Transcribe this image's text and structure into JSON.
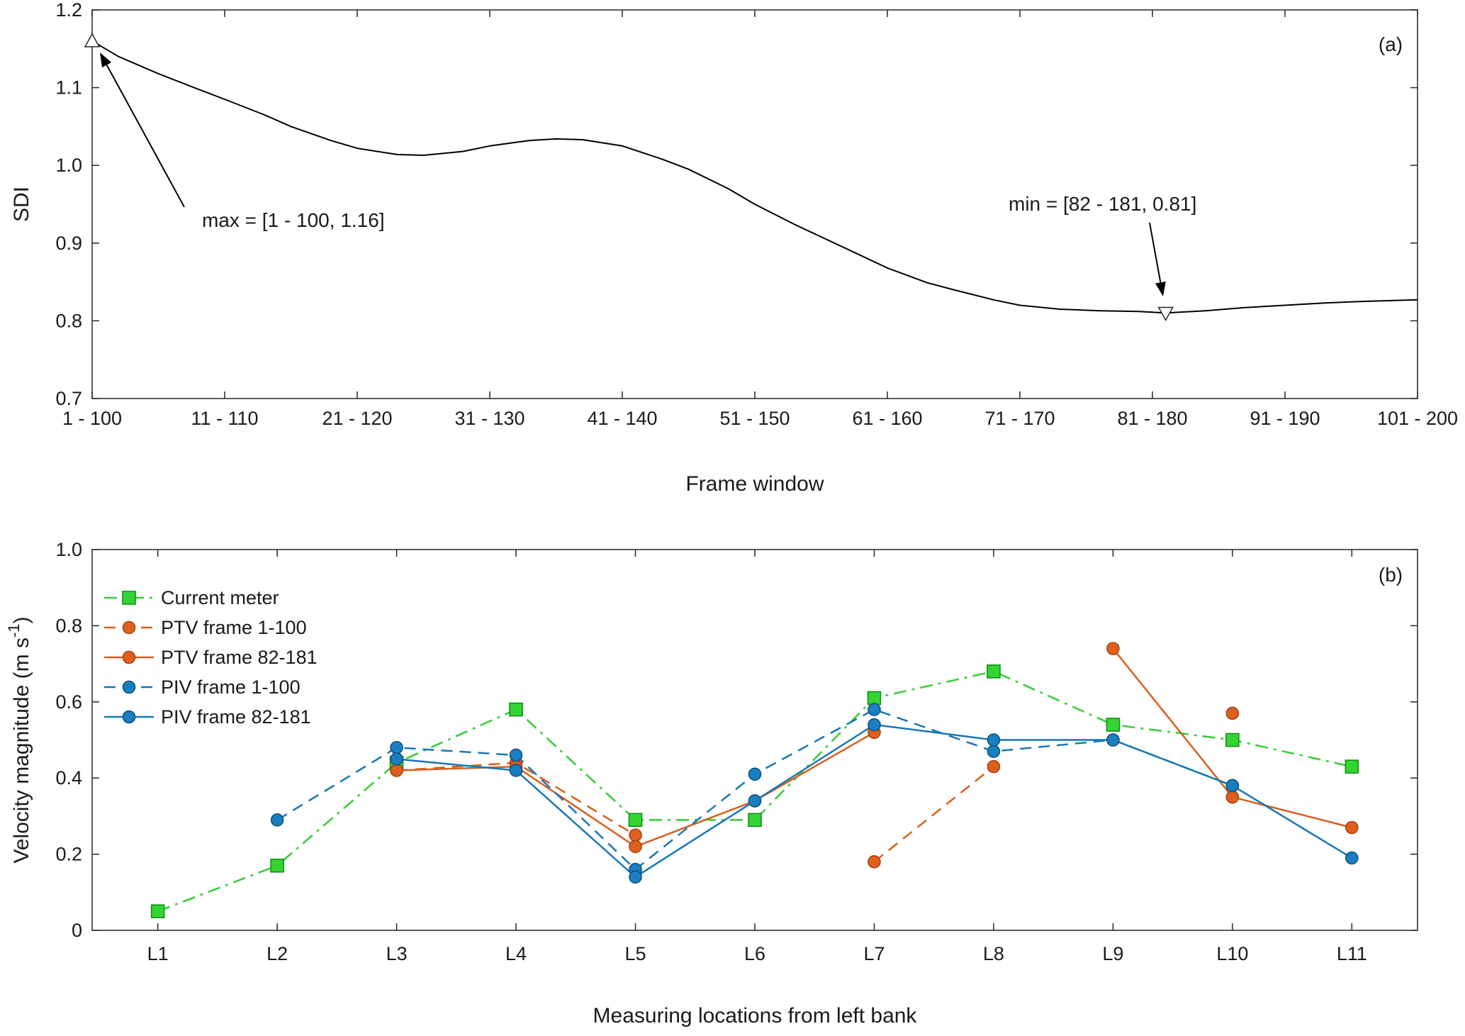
{
  "figure": {
    "background": "#ffffff",
    "axis_color": "#262626",
    "text_color": "#1a1a1a"
  },
  "chart_data": [
    {
      "id": "sdi",
      "type": "line",
      "panel_label": "(a)",
      "title": "",
      "xlabel": "Frame window",
      "ylabel": "SDI",
      "xlim": [
        1,
        101
      ],
      "ylim": [
        0.7,
        1.2
      ],
      "yticks": [
        0.7,
        0.8,
        0.9,
        1.0,
        1.1,
        1.2
      ],
      "ytick_labels": [
        "0.7",
        "0.8",
        "0.9",
        "1.0",
        "1.1",
        "1.2"
      ],
      "xticks": [
        1,
        11,
        21,
        31,
        41,
        51,
        61,
        71,
        81,
        91,
        101
      ],
      "xtick_labels": [
        "1 - 100",
        "11 - 110",
        "21 - 120",
        "31 - 130",
        "41 - 140",
        "51 - 150",
        "61 - 160",
        "71 - 170",
        "81 - 180",
        "91 - 190",
        "101 - 200"
      ],
      "grid": false,
      "legend": null,
      "series": [
        {
          "name": "SDI",
          "line_color": "#000000",
          "line_style": "solid",
          "x": [
            1,
            3,
            6,
            9,
            11,
            14,
            16,
            19,
            21,
            24,
            26,
            29,
            31,
            34,
            36,
            38,
            41,
            44,
            46,
            49,
            51,
            54,
            56,
            59,
            61,
            64,
            66,
            69,
            71,
            74,
            77,
            80,
            82,
            85,
            88,
            91,
            94,
            97,
            101
          ],
          "y": [
            1.16,
            1.14,
            1.118,
            1.098,
            1.085,
            1.065,
            1.05,
            1.032,
            1.022,
            1.014,
            1.013,
            1.018,
            1.025,
            1.032,
            1.034,
            1.033,
            1.025,
            1.008,
            0.995,
            0.97,
            0.95,
            0.924,
            0.908,
            0.884,
            0.868,
            0.849,
            0.84,
            0.827,
            0.82,
            0.815,
            0.813,
            0.812,
            0.81,
            0.813,
            0.817,
            0.82,
            0.823,
            0.825,
            0.827
          ]
        }
      ],
      "annotations": [
        {
          "text": "max = [1 - 100, 1.16]",
          "point_x": 1,
          "point_y": 1.16,
          "marker": "triangle-up"
        },
        {
          "text": "min = [82 - 181, 0.81]",
          "point_x": 82,
          "point_y": 0.81,
          "marker": "triangle-down"
        }
      ]
    },
    {
      "id": "velocity",
      "type": "line",
      "panel_label": "(b)",
      "title": "",
      "xlabel": "Measuring locations from left bank",
      "ylabel_parts": [
        "Velocity magnitude (m s",
        "-1",
        ")"
      ],
      "categories": [
        "L1",
        "L2",
        "L3",
        "L4",
        "L5",
        "L6",
        "L7",
        "L8",
        "L9",
        "L10",
        "L11"
      ],
      "ylim": [
        0,
        1.0
      ],
      "yticks": [
        0,
        0.2,
        0.4,
        0.6,
        0.8,
        1.0
      ],
      "ytick_labels": [
        "0",
        "0.2",
        "0.4",
        "0.6",
        "0.8",
        "1.0"
      ],
      "grid": false,
      "legend_position": "top-left",
      "series": [
        {
          "name": "Current meter",
          "marker": "square",
          "line_style": "dashdot",
          "line_color": "#35cd35",
          "marker_fill": "#35d435",
          "marker_edge": "#119111",
          "values": [
            0.05,
            0.17,
            0.44,
            0.58,
            0.29,
            0.29,
            0.61,
            0.68,
            0.54,
            0.5,
            0.43
          ]
        },
        {
          "name": "PTV frame 1-100",
          "marker": "circle",
          "line_style": "dashed",
          "line_color": "#d95f1e",
          "marker_fill": "#df5f1f",
          "marker_edge": "#a8440f",
          "values": [
            null,
            null,
            0.42,
            0.44,
            0.25,
            null,
            0.18,
            0.43,
            null,
            0.57,
            null
          ]
        },
        {
          "name": "PTV frame 82-181",
          "marker": "circle",
          "line_style": "solid",
          "line_color": "#d95f1e",
          "marker_fill": "#df5f1f",
          "marker_edge": "#a8440f",
          "values": [
            null,
            null,
            0.42,
            0.43,
            0.22,
            0.34,
            0.52,
            null,
            0.74,
            0.35,
            0.27
          ]
        },
        {
          "name": "PIV frame 1-100",
          "marker": "circle",
          "line_style": "dashed",
          "line_color": "#1777b7",
          "marker_fill": "#1b7ec0",
          "marker_edge": "#0d567f",
          "values": [
            null,
            0.29,
            0.48,
            0.46,
            0.16,
            0.41,
            0.58,
            0.47,
            0.5,
            0.38,
            null
          ]
        },
        {
          "name": "PIV frame 82-181",
          "marker": "circle",
          "line_style": "solid",
          "line_color": "#1777b7",
          "marker_fill": "#1b7ec0",
          "marker_edge": "#0d567f",
          "values": [
            null,
            null,
            0.45,
            0.42,
            0.14,
            0.34,
            0.54,
            0.5,
            0.5,
            0.38,
            0.19
          ]
        }
      ]
    }
  ]
}
